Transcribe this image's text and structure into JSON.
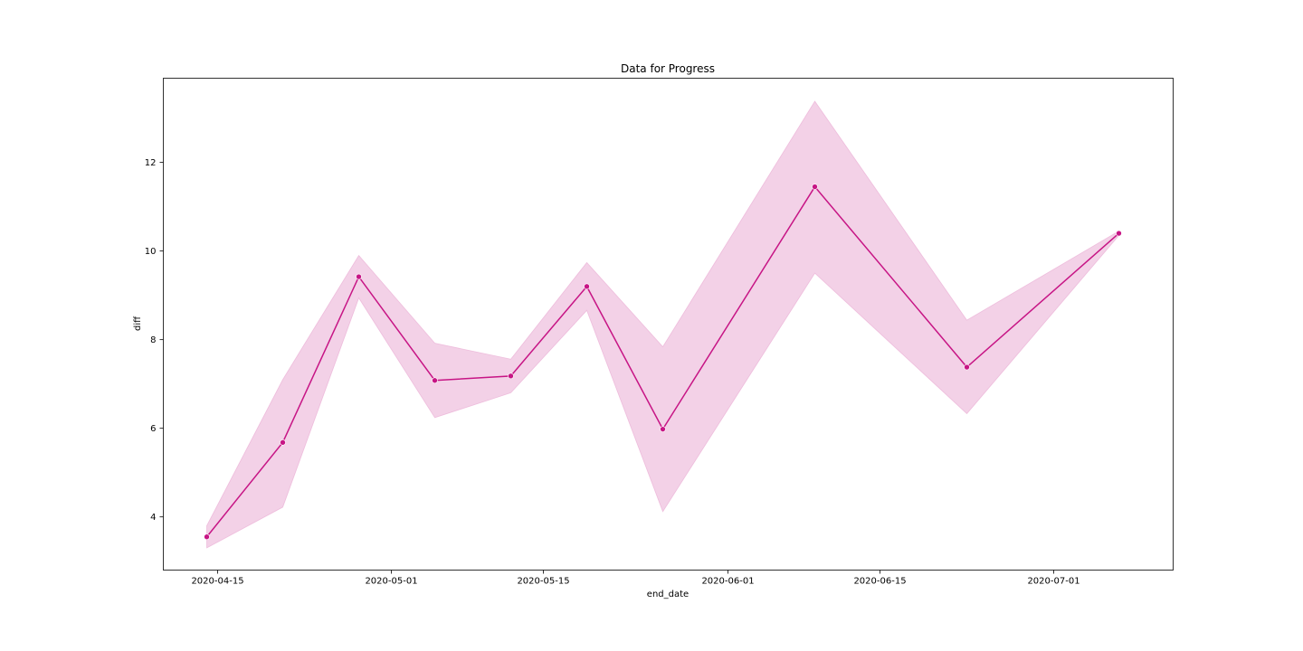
{
  "chart_data": {
    "type": "line",
    "title": "Data for Progress",
    "xlabel": "end_date",
    "ylabel": "diff",
    "x_type": "date",
    "xlim": [
      "2020-04-10",
      "2020-07-12"
    ],
    "ylim": [
      2.8,
      13.9
    ],
    "x_ticks": [
      "2020-04-15",
      "2020-05-01",
      "2020-05-15",
      "2020-06-01",
      "2020-06-15",
      "2020-07-01"
    ],
    "y_ticks": [
      4,
      6,
      8,
      10,
      12
    ],
    "grid": false,
    "legend": null,
    "color": "#c71585",
    "band_color": "#e7a3cf",
    "series": [
      {
        "x": [
          "2020-04-14",
          "2020-04-21",
          "2020-04-28",
          "2020-05-05",
          "2020-05-12",
          "2020-05-19",
          "2020-05-26",
          "2020-06-09",
          "2020-06-23",
          "2020-07-07"
        ],
        "y": [
          3.55,
          5.68,
          9.42,
          7.08,
          7.18,
          9.2,
          5.98,
          11.45,
          7.38,
          10.4
        ],
        "lower": [
          3.3,
          4.22,
          8.94,
          6.24,
          6.8,
          8.66,
          4.12,
          9.5,
          6.33,
          10.35
        ],
        "upper": [
          3.8,
          7.1,
          9.9,
          7.92,
          7.56,
          9.74,
          7.84,
          13.38,
          8.44,
          10.45
        ]
      }
    ]
  }
}
